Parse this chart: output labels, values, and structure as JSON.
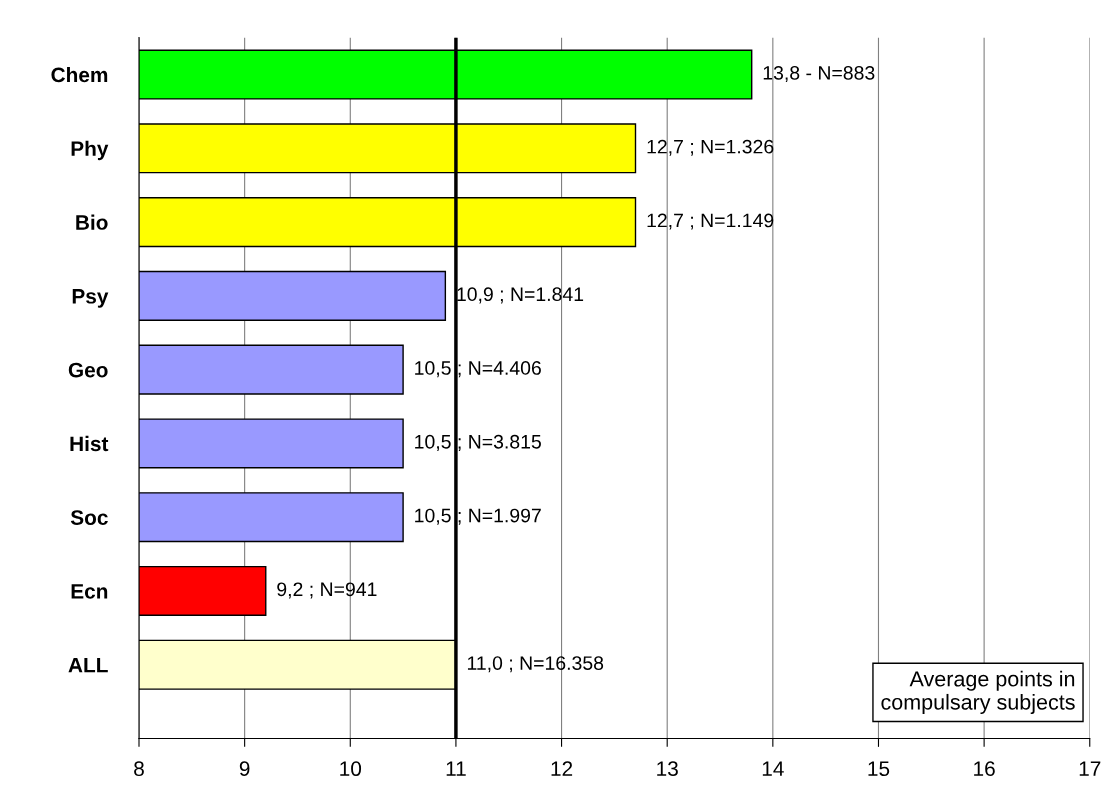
{
  "chart_data": {
    "type": "bar",
    "orientation": "horizontal",
    "categories": [
      "Chem",
      "Phy",
      "Bio",
      "Psy",
      "Geo",
      "Hist",
      "Soc",
      "Ecn",
      "ALL"
    ],
    "values": [
      13.8,
      12.7,
      12.7,
      10.9,
      10.5,
      10.5,
      10.5,
      9.2,
      11.0
    ],
    "colors": [
      "#00ff00",
      "#ffff00",
      "#ffff00",
      "#9999ff",
      "#9999ff",
      "#9999ff",
      "#9999ff",
      "#ff0000",
      "#ffffcc"
    ],
    "value_labels": [
      "13,8 - N=883",
      "12,7 ; N=1.326",
      "12,7 ; N=1.149",
      "10,9 ; N=1.841",
      "10,5 ; N=4.406",
      "10,5 ; N=3.815",
      "10,5 ; N=1.997",
      "9,2 ; N=941",
      "11,0 ; N=16.358"
    ],
    "xlim": [
      8,
      17
    ],
    "xticks": [
      8,
      9,
      10,
      11,
      12,
      13,
      14,
      15,
      16,
      17
    ],
    "ref_lines": [
      {
        "axis": "x",
        "value": 11,
        "label": null,
        "color": "#000000"
      }
    ],
    "annotations": [
      "Average points in\ncompulsary subjects"
    ],
    "grid": "x",
    "legend": false
  }
}
